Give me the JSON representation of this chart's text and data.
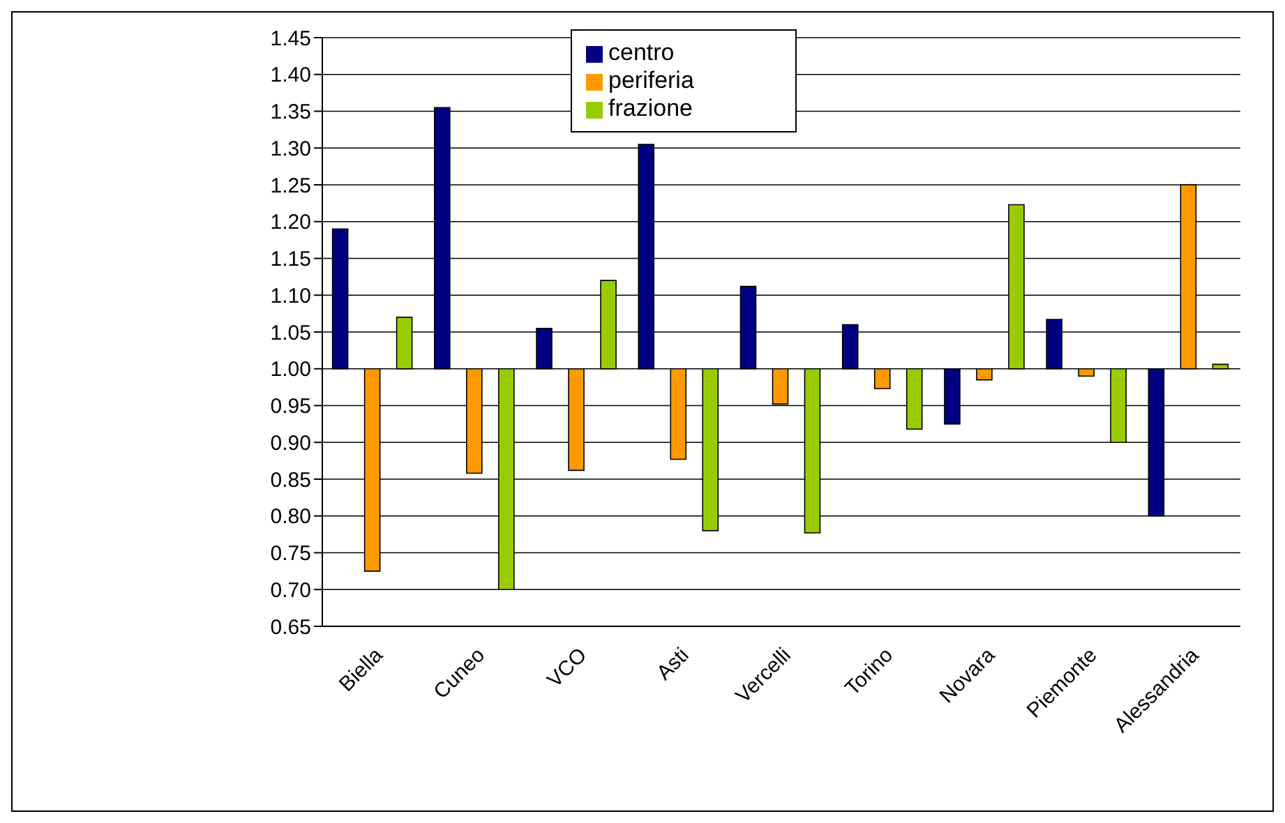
{
  "chart_data": {
    "type": "bar",
    "categories": [
      "Biella",
      "Cuneo",
      "VCO",
      "Asti",
      "Vercelli",
      "Torino",
      "Novara",
      "Piemonte",
      "Alessandria"
    ],
    "series": [
      {
        "name": "centro",
        "color": "#000080",
        "base": [
          1,
          1,
          1,
          1,
          1,
          1,
          1,
          1,
          1
        ],
        "values": [
          0.19,
          0.355,
          0.055,
          0.305,
          0.112,
          0.06,
          -0.075,
          0.067,
          -0.2
        ]
      },
      {
        "name": "periferia",
        "color": "#ff9900",
        "base": [
          1,
          1,
          1,
          1,
          1,
          1,
          1,
          1,
          1
        ],
        "values": [
          -0.275,
          -0.142,
          -0.138,
          -0.123,
          -0.048,
          -0.027,
          -0.015,
          -0.01,
          0.25
        ]
      },
      {
        "name": "frazione",
        "color": "#99cc00",
        "base": [
          1,
          1,
          1,
          1,
          1,
          1,
          1,
          1,
          1
        ],
        "values": [
          0.07,
          -0.3,
          0.12,
          -0.22,
          -0.223,
          -0.082,
          0.223,
          -0.1,
          0.006
        ]
      }
    ],
    "ylim": [
      0.65,
      1.45
    ],
    "yticks": [
      0.65,
      {
        "value": 0.7,
        "label": "0.70"
      },
      0.75,
      {
        "value": 0.8,
        "label": "0.80"
      },
      0.85,
      {
        "value": 0.9,
        "label": "0.90"
      },
      0.95,
      {
        "value": 1,
        "label": "1.00"
      },
      1.05,
      {
        "value": 1.1,
        "label": "1.10"
      },
      1.15,
      {
        "value": 1.2,
        "label": "1.20"
      },
      1.25,
      {
        "value": 1.3,
        "label": "1.30"
      },
      1.35,
      {
        "value": 1.4,
        "label": "1.40"
      },
      1.45
    ],
    "grid": "y",
    "legend": "top"
  }
}
